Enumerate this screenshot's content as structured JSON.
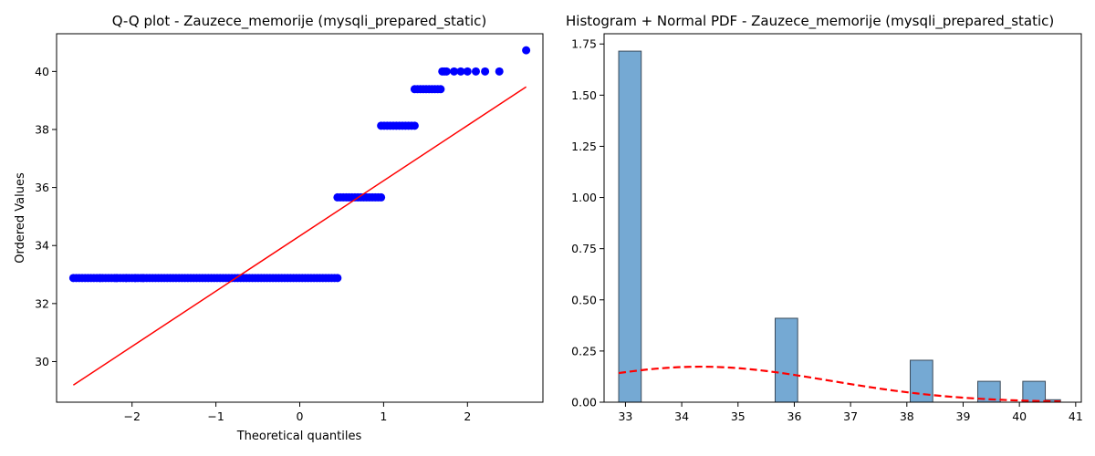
{
  "chart_data": [
    {
      "type": "scatter",
      "title": "Q-Q plot - Zauzece_memorije (mysqli_prepared_static)",
      "xlabel": "Theoretical quantiles",
      "ylabel": "Ordered Values",
      "xlim": [
        -2.9,
        2.9
      ],
      "ylim": [
        28.6,
        41.3
      ],
      "xticks": [
        -2,
        -1,
        0,
        1,
        2
      ],
      "xtick_labels": [
        "−2",
        "−1",
        "0",
        "1",
        "2"
      ],
      "yticks": [
        30,
        32,
        34,
        36,
        38,
        40
      ],
      "ytick_labels": [
        "30",
        "32",
        "34",
        "36",
        "38",
        "40"
      ],
      "grid": false,
      "colors": {
        "points": "#0000ff",
        "fit_line": "#ff0000"
      },
      "groups": [
        {
          "y": 32.88,
          "x_from": -2.7,
          "x_to": 0.45,
          "extra_x": [
            -2.38,
            -2.19,
            -2.07,
            -1.96,
            -1.87
          ]
        },
        {
          "y": 35.66,
          "x_from": 0.45,
          "x_to": 0.97,
          "extra_x": []
        },
        {
          "y": 38.13,
          "x_from": 0.97,
          "x_to": 1.37,
          "extra_x": []
        },
        {
          "y": 39.39,
          "x_from": 1.37,
          "x_to": 1.68,
          "extra_x": []
        },
        {
          "y": 40.0,
          "x_from": 1.7,
          "x_to": 1.75,
          "extra_x": [
            1.84,
            1.92,
            2.0,
            2.1,
            2.21,
            2.38
          ]
        },
        {
          "y": 40.73,
          "x_from": 2.7,
          "x_to": 2.7,
          "extra_x": []
        }
      ],
      "fit_line": {
        "x": [
          -2.7,
          2.7
        ],
        "y": [
          29.19,
          39.47
        ]
      }
    },
    {
      "type": "bar",
      "title": "Histogram + Normal PDF - Zauzece_memorije (mysqli_prepared_static)",
      "xlabel": "",
      "ylabel": "",
      "xlim": [
        32.62,
        41.1
      ],
      "ylim": [
        0,
        1.8
      ],
      "xticks": [
        33,
        34,
        35,
        36,
        37,
        38,
        39,
        40,
        41
      ],
      "xtick_labels": [
        "33",
        "34",
        "35",
        "36",
        "37",
        "38",
        "39",
        "40",
        "41"
      ],
      "yticks": [
        0,
        0.25,
        0.5,
        0.75,
        1.0,
        1.25,
        1.5,
        1.75
      ],
      "ytick_labels": [
        "0.00",
        "0.25",
        "0.50",
        "0.75",
        "1.00",
        "1.25",
        "1.50",
        "1.75"
      ],
      "grid": false,
      "colors": {
        "bars": "#75a9d3",
        "bar_edge": "#3a4a5a",
        "pdf_line": "#ff0000"
      },
      "bins": [
        {
          "x0": 32.88,
          "x1": 33.28,
          "density": 1.715
        },
        {
          "x0": 35.66,
          "x1": 36.06,
          "density": 0.41
        },
        {
          "x0": 38.06,
          "x1": 38.46,
          "density": 0.205
        },
        {
          "x0": 39.26,
          "x1": 39.66,
          "density": 0.102
        },
        {
          "x0": 40.06,
          "x1": 40.46,
          "density": 0.102
        },
        {
          "x0": 40.46,
          "x1": 40.73,
          "density": 0.012
        }
      ],
      "pdf": {
        "mean": 34.33,
        "std": 2.3,
        "x_range": [
          32.88,
          40.73
        ]
      }
    }
  ]
}
